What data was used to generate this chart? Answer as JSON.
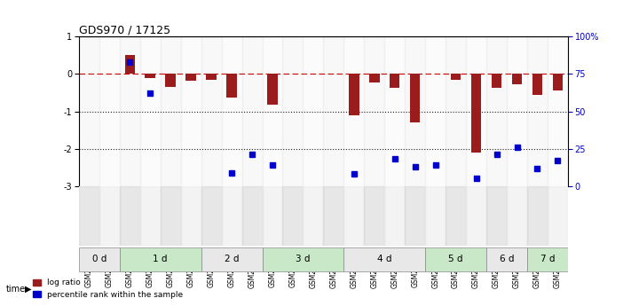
{
  "title": "GDS970 / 17125",
  "samples": [
    "GSM21882",
    "GSM21883",
    "GSM21884",
    "GSM21885",
    "GSM21886",
    "GSM21887",
    "GSM21888",
    "GSM21889",
    "GSM21890",
    "GSM21891",
    "GSM21892",
    "GSM21893",
    "GSM21894",
    "GSM21895",
    "GSM21896",
    "GSM21897",
    "GSM21898",
    "GSM21899",
    "GSM21900",
    "GSM21901",
    "GSM21902",
    "GSM21903",
    "GSM21904",
    "GSM21905"
  ],
  "log_ratio": [
    0,
    0,
    0.5,
    -0.1,
    -0.35,
    -0.18,
    -0.15,
    -0.62,
    0,
    -0.82,
    0,
    0,
    0,
    -1.1,
    -0.22,
    -0.38,
    -1.3,
    0,
    -0.15,
    -2.1,
    -0.38,
    -0.28,
    -0.55,
    -0.45
  ],
  "percentile": [
    null,
    null,
    0.83,
    0.62,
    null,
    null,
    null,
    0.09,
    0.21,
    0.14,
    null,
    null,
    null,
    0.08,
    null,
    0.18,
    0.13,
    0.14,
    null,
    0.05,
    0.21,
    0.26,
    0.12,
    0.17
  ],
  "time_groups": [
    {
      "label": "0 d",
      "start": 0,
      "end": 2,
      "color": "#e8e8e8"
    },
    {
      "label": "1 d",
      "start": 2,
      "end": 6,
      "color": "#c8e8c8"
    },
    {
      "label": "2 d",
      "start": 6,
      "end": 9,
      "color": "#e8e8e8"
    },
    {
      "label": "3 d",
      "start": 9,
      "end": 13,
      "color": "#c8e8c8"
    },
    {
      "label": "4 d",
      "start": 13,
      "end": 17,
      "color": "#e8e8e8"
    },
    {
      "label": "5 d",
      "start": 17,
      "end": 20,
      "color": "#c8e8c8"
    },
    {
      "label": "6 d",
      "start": 20,
      "end": 22,
      "color": "#e8e8e8"
    },
    {
      "label": "7 d",
      "start": 22,
      "end": 24,
      "color": "#c8e8c8"
    }
  ],
  "ylim_left": [
    -3,
    1
  ],
  "ylim_right": [
    0,
    100
  ],
  "bar_color": "#9b1c1c",
  "dot_color": "#0000cc",
  "dashed_line_color": "#cc0000",
  "dotted_line_color": "#222222",
  "right_axis_ticks": [
    0,
    25,
    50,
    75,
    100
  ],
  "right_axis_labels": [
    "0",
    "25",
    "50",
    "75",
    "100%"
  ],
  "right_axis_color": "#0000cc"
}
